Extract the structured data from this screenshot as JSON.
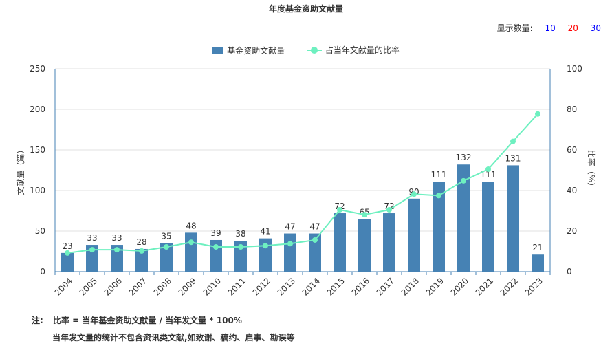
{
  "chart_data": {
    "type": "bar",
    "title": "年度基金资助文献量",
    "categories": [
      "2004",
      "2005",
      "2006",
      "2007",
      "2008",
      "2009",
      "2010",
      "2011",
      "2012",
      "2013",
      "2014",
      "2015",
      "2016",
      "2017",
      "2018",
      "2019",
      "2020",
      "2021",
      "2022",
      "2023"
    ],
    "series": [
      {
        "name": "基金资助文献量",
        "type": "bar",
        "axis": "left",
        "color": "#4682b4",
        "values": [
          23,
          33,
          33,
          28,
          35,
          48,
          39,
          38,
          41,
          47,
          47,
          72,
          65,
          72,
          90,
          111,
          132,
          111,
          131,
          21
        ]
      },
      {
        "name": "占当年文献量的比率",
        "type": "line",
        "axis": "right",
        "color": "#6ef0c0",
        "values": [
          9.2,
          10.8,
          10.8,
          10.2,
          12.2,
          14.5,
          12.2,
          12.2,
          12.8,
          13.8,
          15.6,
          30.5,
          28.1,
          30.5,
          38.2,
          37.5,
          44.8,
          50.5,
          64.2,
          77.7
        ]
      }
    ],
    "ylabel": "文献量（篇）",
    "ylabel_right": "比率（%）",
    "ylim": [
      0,
      250
    ],
    "yticks": [
      0,
      50,
      100,
      150,
      200,
      250
    ],
    "ylim_right": [
      0,
      100
    ],
    "yticks_right": [
      0,
      20,
      40,
      60,
      80,
      100
    ],
    "grid": true,
    "legend": "top-center"
  },
  "display_count": {
    "label": "显示数量:",
    "options": [
      {
        "value": "10",
        "color": "#0000ff"
      },
      {
        "value": "20",
        "color": "#ff0000"
      },
      {
        "value": "30",
        "color": "#0000ff"
      }
    ]
  },
  "notes": {
    "label": "注:",
    "line1": "比率 = 当年基金资助文献量 / 当年发文量 * 100%",
    "line2": "当年发文量的统计不包含资讯类文献,如致谢、稿约、启事、勘误等"
  }
}
